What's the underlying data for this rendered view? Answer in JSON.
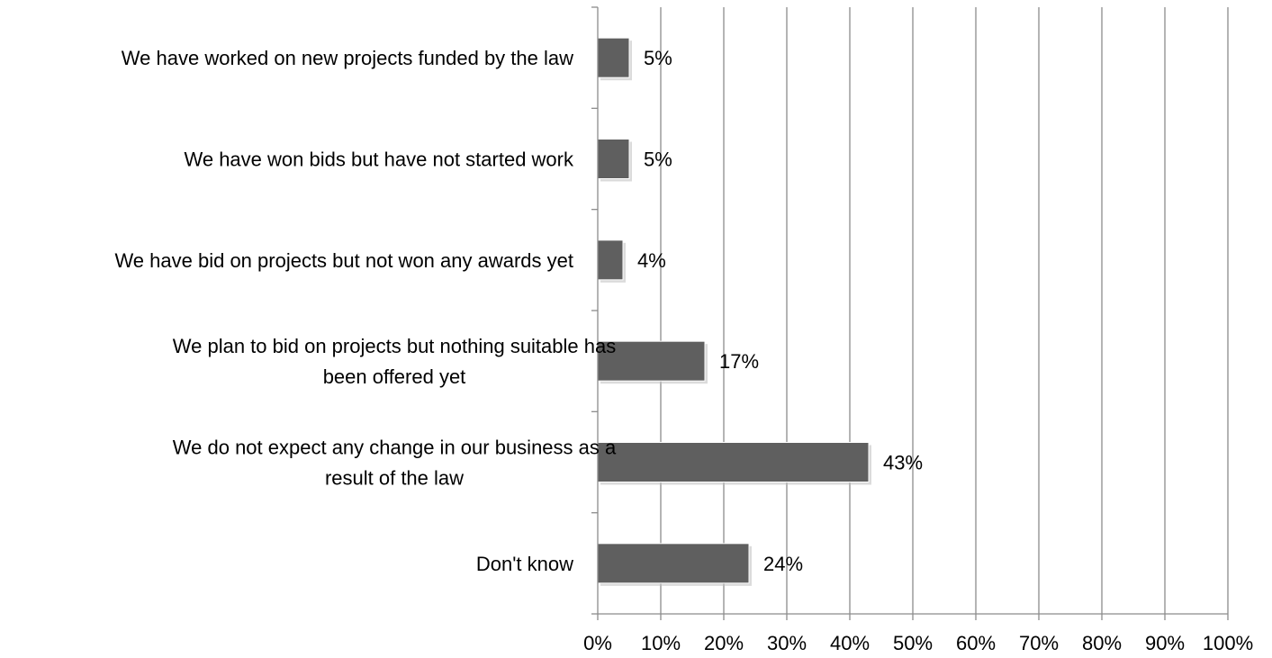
{
  "chart_data": {
    "type": "bar",
    "orientation": "horizontal",
    "categories": [
      [
        "We have worked on new projects funded by the law"
      ],
      [
        "We have won bids but have not started work"
      ],
      [
        "We have bid on projects but not won any awards yet"
      ],
      [
        "We plan to bid on projects but nothing suitable has",
        "been offered yet"
      ],
      [
        "We do not expect any change in our business as a",
        "result of the law"
      ],
      [
        "Don't know"
      ]
    ],
    "values": [
      5,
      5,
      4,
      17,
      43,
      24
    ],
    "data_labels": [
      "5%",
      "5%",
      "4%",
      "17%",
      "43%",
      "24%"
    ],
    "xlim": [
      0,
      100
    ],
    "x_ticks": [
      0,
      10,
      20,
      30,
      40,
      50,
      60,
      70,
      80,
      90,
      100
    ],
    "x_tick_labels": [
      "0%",
      "10%",
      "20%",
      "30%",
      "40%",
      "50%",
      "60%",
      "70%",
      "80%",
      "90%",
      "100%"
    ],
    "grid": true,
    "colors": {
      "bar": "#5f5f5f",
      "grid": "#8c8c8c",
      "text": "#000000"
    }
  }
}
